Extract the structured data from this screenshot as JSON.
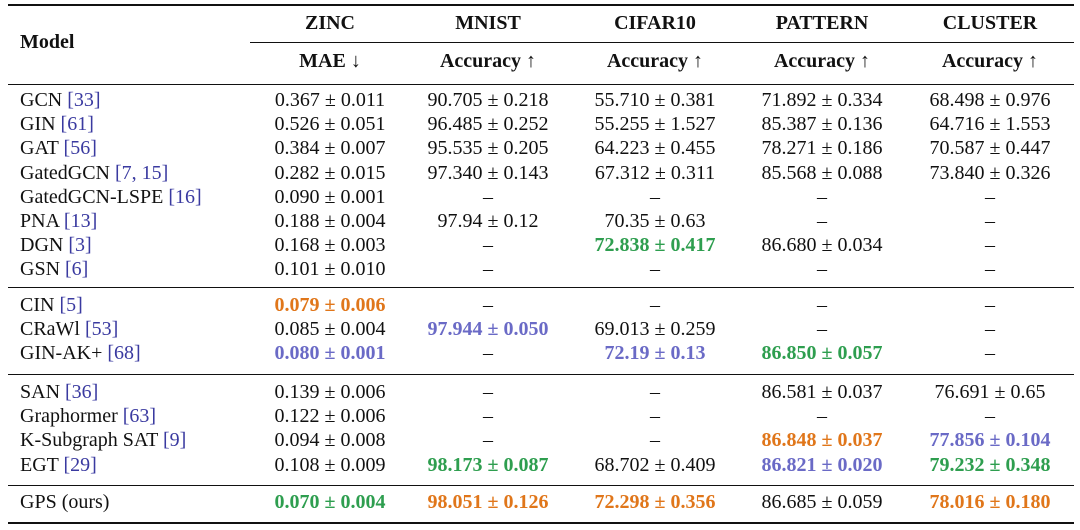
{
  "table": {
    "model_header": "Model",
    "columns": [
      {
        "name": "ZINC",
        "metric": "MAE ↓"
      },
      {
        "name": "MNIST",
        "metric": "Accuracy ↑"
      },
      {
        "name": "CIFAR10",
        "metric": "Accuracy ↑"
      },
      {
        "name": "PATTERN",
        "metric": "Accuracy ↑"
      },
      {
        "name": "CLUSTER",
        "metric": "Accuracy ↑"
      }
    ],
    "highlight_colors": {
      "first": "#2e9e4f",
      "second": "#e0761a",
      "third": "#6a6ac6"
    },
    "groups": [
      [
        {
          "model": "GCN",
          "ref": "[33]",
          "cells": [
            "0.367 ± 0.011",
            "90.705 ± 0.218",
            "55.710 ± 0.381",
            "71.892 ± 0.334",
            "68.498 ± 0.976"
          ]
        },
        {
          "model": "GIN",
          "ref": "[61]",
          "cells": [
            "0.526 ± 0.051",
            "96.485 ± 0.252",
            "55.255 ± 1.527",
            "85.387 ± 0.136",
            "64.716 ± 1.553"
          ]
        },
        {
          "model": "GAT",
          "ref": "[56]",
          "cells": [
            "0.384 ± 0.007",
            "95.535 ± 0.205",
            "64.223 ± 0.455",
            "78.271 ± 0.186",
            "70.587 ± 0.447"
          ]
        },
        {
          "model": "GatedGCN",
          "ref": "[7, 15]",
          "cells": [
            "0.282 ± 0.015",
            "97.340 ± 0.143",
            "67.312 ± 0.311",
            "85.568 ± 0.088",
            "73.840 ± 0.326"
          ]
        },
        {
          "model": "GatedGCN-LSPE",
          "ref": "[16]",
          "cells": [
            "0.090 ± 0.001",
            "–",
            "–",
            "–",
            "–"
          ]
        },
        {
          "model": "PNA",
          "ref": "[13]",
          "cells": [
            "0.188 ± 0.004",
            "97.94 ± 0.12",
            "70.35 ± 0.63",
            "–",
            "–"
          ]
        },
        {
          "model": "DGN",
          "ref": "[3]",
          "cells": [
            "0.168 ± 0.003",
            "–",
            {
              "text": "72.838 ± 0.417",
              "highlight": "first"
            },
            "86.680 ± 0.034",
            "–"
          ]
        },
        {
          "model": "GSN",
          "ref": "[6]",
          "cells": [
            "0.101 ± 0.010",
            "–",
            "–",
            "–",
            "–"
          ]
        }
      ],
      [
        {
          "model": "CIN",
          "ref": "[5]",
          "cells": [
            {
              "text": "0.079 ± 0.006",
              "highlight": "second"
            },
            "–",
            "–",
            "–",
            "–"
          ]
        },
        {
          "model": "CRaWl",
          "ref": "[53]",
          "cells": [
            "0.085 ± 0.004",
            {
              "text": "97.944 ± 0.050",
              "highlight": "third"
            },
            "69.013 ± 0.259",
            "–",
            "–"
          ]
        },
        {
          "model": "GIN-AK+",
          "ref": "[68]",
          "cells": [
            {
              "text": "0.080 ± 0.001",
              "highlight": "third"
            },
            "–",
            {
              "text": "72.19 ± 0.13",
              "highlight": "third"
            },
            {
              "text": "86.850 ± 0.057",
              "highlight": "first"
            },
            "–"
          ]
        }
      ],
      [
        {
          "model": "SAN",
          "ref": "[36]",
          "cells": [
            "0.139 ± 0.006",
            "–",
            "–",
            "86.581 ± 0.037",
            "76.691 ± 0.65"
          ]
        },
        {
          "model": "Graphormer",
          "ref": "[63]",
          "cells": [
            "0.122 ± 0.006",
            "–",
            "–",
            "–",
            "–"
          ]
        },
        {
          "model": "K-Subgraph SAT",
          "ref": "[9]",
          "cells": [
            "0.094 ± 0.008",
            "–",
            "–",
            {
              "text": "86.848 ± 0.037",
              "highlight": "second"
            },
            {
              "text": "77.856 ± 0.104",
              "highlight": "third"
            }
          ]
        },
        {
          "model": "EGT",
          "ref": "[29]",
          "cells": [
            "0.108 ± 0.009",
            {
              "text": "98.173 ± 0.087",
              "highlight": "first"
            },
            "68.702 ± 0.409",
            {
              "text": "86.821 ± 0.020",
              "highlight": "third"
            },
            {
              "text": "79.232 ± 0.348",
              "highlight": "first"
            }
          ]
        }
      ],
      [
        {
          "model": "GPS (ours)",
          "cells": [
            {
              "text": "0.070 ± 0.004",
              "highlight": "first"
            },
            {
              "text": "98.051 ± 0.126",
              "highlight": "second"
            },
            {
              "text": "72.298 ± 0.356",
              "highlight": "second"
            },
            "86.685 ± 0.059",
            {
              "text": "78.016 ± 0.180",
              "highlight": "second"
            }
          ]
        }
      ]
    ]
  }
}
